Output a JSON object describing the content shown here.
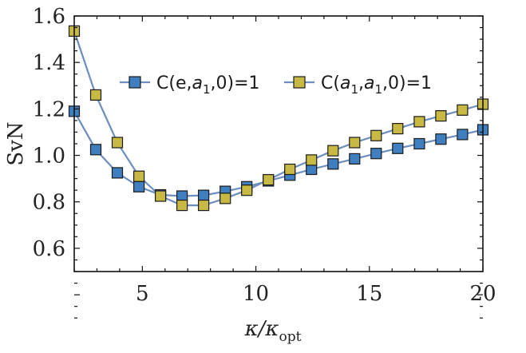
{
  "chart_data": {
    "type": "line",
    "title": "",
    "xlabel": "κ/κ_opt",
    "xlabel_main": "κ/κ",
    "xlabel_sub": "opt",
    "ylabel": "SvN",
    "xlim": [
      2,
      20
    ],
    "ylim": [
      0.5,
      1.6
    ],
    "xticks": [
      5,
      10,
      15,
      20
    ],
    "yticks": [
      0.6,
      0.8,
      1.0,
      1.2,
      1.4,
      1.6
    ],
    "ytick_labels": [
      "0.6",
      "0.8",
      "1.0",
      "1.2",
      "1.4",
      "1.6"
    ],
    "grid": false,
    "legend_position": "top-center",
    "line_color": "#6c8ebf",
    "series": [
      {
        "name": "C(e,a1,0)=1",
        "legend_parts": {
          "pre": "C(e,",
          "var": "a",
          "sub": "1",
          "post": ",0)=1"
        },
        "color": "#3f7fbf",
        "x": [
          2.0,
          2.95,
          3.9,
          4.85,
          5.8,
          6.75,
          7.7,
          8.65,
          9.6,
          10.55,
          11.5,
          12.45,
          13.4,
          14.35,
          15.3,
          16.25,
          17.2,
          18.15,
          19.1,
          20.0
        ],
        "y": [
          1.19,
          1.025,
          0.925,
          0.865,
          0.83,
          0.825,
          0.828,
          0.845,
          0.865,
          0.89,
          0.915,
          0.94,
          0.963,
          0.985,
          1.008,
          1.03,
          1.05,
          1.07,
          1.09,
          1.11
        ]
      },
      {
        "name": "C(a1,a1,0)=1",
        "legend_parts": {
          "pre": "C(",
          "var": "a",
          "sub": "1",
          "mid": ",",
          "var2": "a",
          "sub2": "1",
          "post": ",0)=1"
        },
        "color": "#c7b944",
        "x": [
          2.0,
          2.95,
          3.9,
          4.85,
          5.8,
          6.75,
          7.7,
          8.65,
          9.6,
          10.55,
          11.5,
          12.45,
          13.4,
          14.35,
          15.3,
          16.25,
          17.2,
          18.15,
          19.1,
          20.0
        ],
        "y": [
          1.535,
          1.26,
          1.055,
          0.91,
          0.825,
          0.785,
          0.785,
          0.815,
          0.85,
          0.895,
          0.94,
          0.98,
          1.02,
          1.055,
          1.085,
          1.115,
          1.145,
          1.17,
          1.195,
          1.22
        ]
      }
    ]
  }
}
